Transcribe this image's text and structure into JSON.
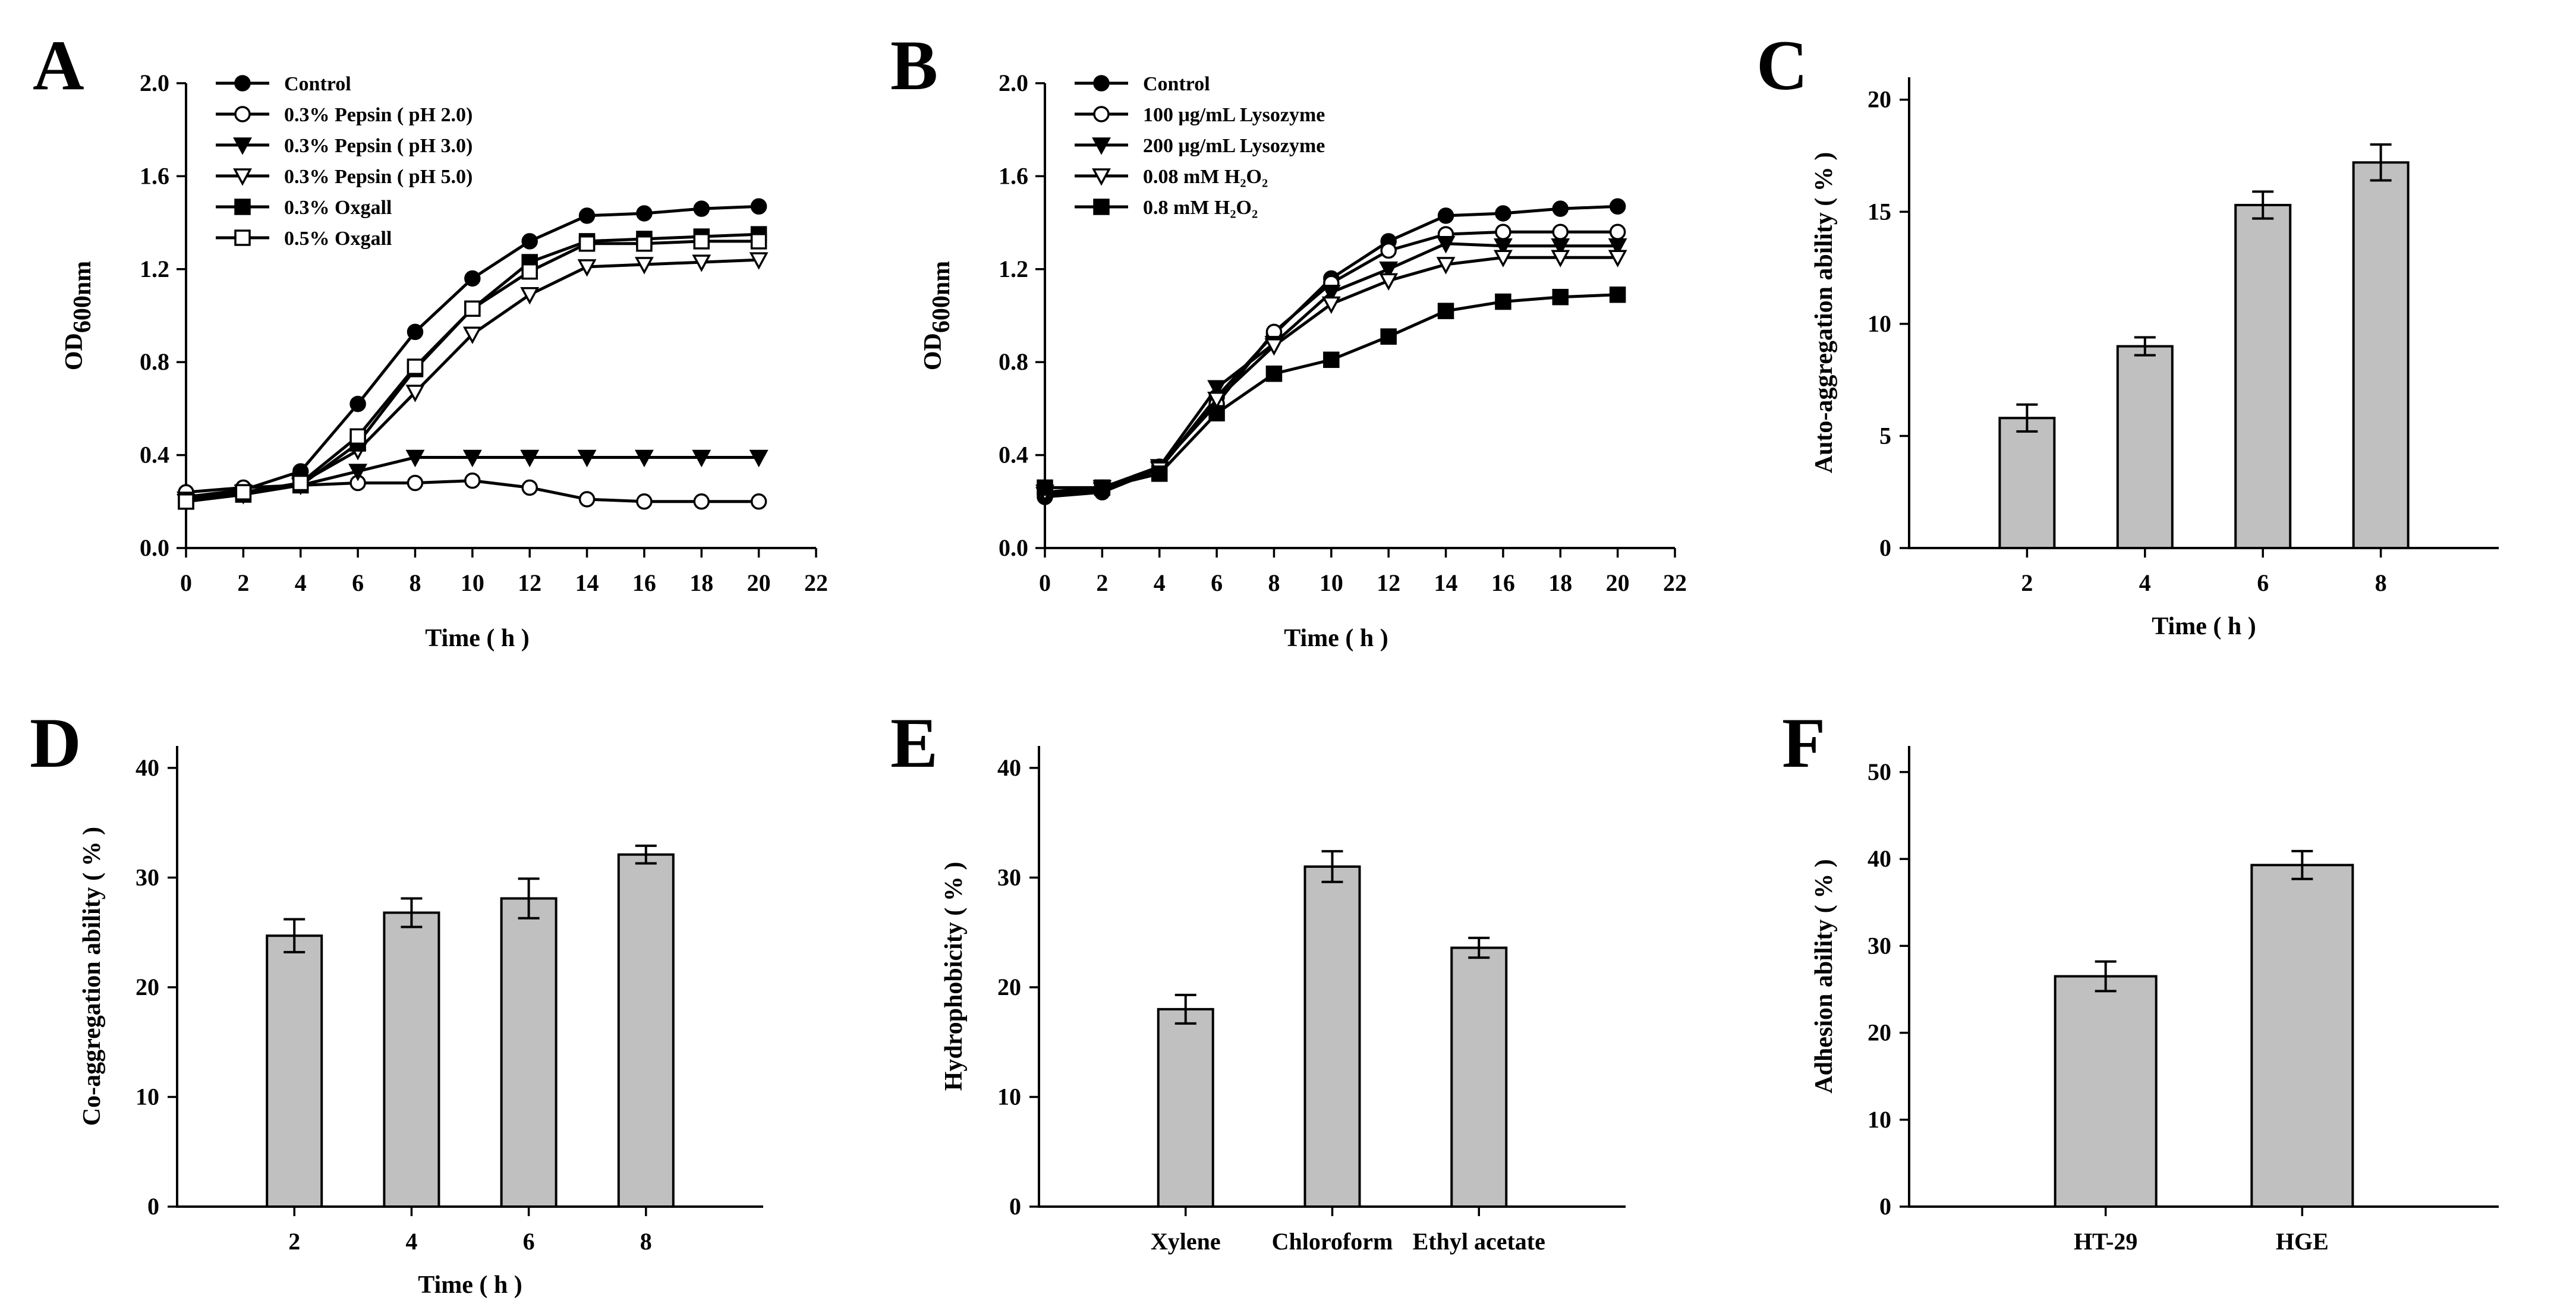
{
  "chart_data": [
    {
      "panel": "A",
      "type": "line",
      "xlabel": "Time ( h )",
      "ylabel_main": "OD",
      "ylabel_sub": "600nm",
      "xlim": [
        0,
        22
      ],
      "ylim": [
        0,
        2.0
      ],
      "xticks": [
        0,
        2,
        4,
        6,
        8,
        10,
        12,
        14,
        16,
        18,
        20,
        22
      ],
      "xtick_labels": [
        "0",
        "2",
        "4",
        "6",
        "8",
        "10",
        "12",
        "14",
        "16",
        "18",
        "20",
        "22"
      ],
      "yticks": [
        0,
        0.4,
        0.8,
        1.2,
        1.6,
        2.0
      ],
      "ytick_labels": [
        "0.0",
        "0.4",
        "0.8",
        "1.2",
        "1.6",
        "2.0"
      ],
      "x": [
        0,
        2,
        4,
        6,
        8,
        10,
        12,
        14,
        16,
        18,
        20
      ],
      "series": [
        {
          "name": "Control",
          "marker": "filled-circle",
          "values": [
            0.22,
            0.25,
            0.33,
            0.62,
            0.93,
            1.16,
            1.32,
            1.43,
            1.44,
            1.46,
            1.47
          ]
        },
        {
          "name": "0.3% Pepsin ( pH 2.0)",
          "marker": "open-circle",
          "values": [
            0.24,
            0.26,
            0.27,
            0.28,
            0.28,
            0.29,
            0.26,
            0.21,
            0.2,
            0.2,
            0.2
          ]
        },
        {
          "name": "0.3% Pepsin ( pH 3.0)",
          "marker": "filled-triangle-down",
          "values": [
            0.21,
            0.24,
            0.27,
            0.33,
            0.39,
            0.39,
            0.39,
            0.39,
            0.39,
            0.39,
            0.39
          ]
        },
        {
          "name": "0.3% Pepsin ( pH 5.0)",
          "marker": "open-triangle-down",
          "values": [
            0.2,
            0.23,
            0.28,
            0.42,
            0.67,
            0.92,
            1.09,
            1.21,
            1.22,
            1.23,
            1.24
          ]
        },
        {
          "name": "0.3% Oxgall",
          "marker": "filled-square",
          "values": [
            0.2,
            0.23,
            0.27,
            0.45,
            0.77,
            1.03,
            1.23,
            1.32,
            1.33,
            1.34,
            1.35
          ]
        },
        {
          "name": "0.5% Oxgall",
          "marker": "open-square",
          "values": [
            0.2,
            0.24,
            0.28,
            0.48,
            0.78,
            1.03,
            1.19,
            1.31,
            1.31,
            1.32,
            1.32
          ]
        }
      ]
    },
    {
      "panel": "B",
      "type": "line",
      "xlabel": "Time ( h )",
      "ylabel_main": "OD",
      "ylabel_sub": "600nm",
      "xlim": [
        0,
        22
      ],
      "ylim": [
        0,
        2.0
      ],
      "xticks": [
        0,
        2,
        4,
        6,
        8,
        10,
        12,
        14,
        16,
        18,
        20,
        22
      ],
      "xtick_labels": [
        "0",
        "2",
        "4",
        "6",
        "8",
        "10",
        "12",
        "14",
        "16",
        "18",
        "20",
        "22"
      ],
      "yticks": [
        0,
        0.4,
        0.8,
        1.2,
        1.6,
        2.0
      ],
      "ytick_labels": [
        "0.0",
        "0.4",
        "0.8",
        "1.2",
        "1.6",
        "2.0"
      ],
      "x": [
        0,
        2,
        4,
        6,
        8,
        10,
        12,
        14,
        16,
        18,
        20
      ],
      "series": [
        {
          "name": "Control",
          "marker": "filled-circle",
          "values": [
            0.22,
            0.24,
            0.34,
            0.65,
            0.92,
            1.16,
            1.32,
            1.43,
            1.44,
            1.46,
            1.47
          ]
        },
        {
          "name": "100 μg/mL  Lysozyme",
          "marker": "open-circle",
          "values": [
            0.24,
            0.26,
            0.35,
            0.62,
            0.93,
            1.14,
            1.28,
            1.35,
            1.36,
            1.36,
            1.36
          ]
        },
        {
          "name": "200 μg/mL  Lysozyme",
          "marker": "filled-triangle-down",
          "values": [
            0.23,
            0.25,
            0.35,
            0.69,
            0.88,
            1.1,
            1.2,
            1.31,
            1.3,
            1.3,
            1.3
          ]
        },
        {
          "name": "0.08 mM H₂O₂",
          "marker": "open-triangle-down",
          "values": [
            0.24,
            0.26,
            0.34,
            0.64,
            0.87,
            1.05,
            1.15,
            1.22,
            1.25,
            1.25,
            1.25
          ]
        },
        {
          "name": "0.8 mM H₂O₂",
          "marker": "filled-square",
          "values": [
            0.26,
            0.26,
            0.32,
            0.58,
            0.75,
            0.81,
            0.91,
            1.02,
            1.06,
            1.08,
            1.09
          ]
        }
      ]
    },
    {
      "panel": "C",
      "type": "bar",
      "xlabel": "Time ( h )",
      "ylabel": "Auto-aggregation ability ( % )",
      "ylim": [
        0,
        21
      ],
      "yticks": [
        0,
        5,
        10,
        15,
        20
      ],
      "ytick_labels": [
        "0",
        "5",
        "10",
        "15",
        "20"
      ],
      "categories": [
        "2",
        "4",
        "6",
        "8"
      ],
      "values": [
        5.8,
        9.0,
        15.3,
        17.2
      ],
      "errors": [
        0.6,
        0.4,
        0.6,
        0.8
      ]
    },
    {
      "panel": "D",
      "type": "bar",
      "xlabel": "Time ( h )",
      "ylabel": "Co-aggregation ability ( % )",
      "ylim": [
        0,
        42
      ],
      "yticks": [
        0,
        10,
        20,
        30,
        40
      ],
      "ytick_labels": [
        "0",
        "10",
        "20",
        "30",
        "40"
      ],
      "categories": [
        "2",
        "4",
        "6",
        "8"
      ],
      "values": [
        24.7,
        26.8,
        28.1,
        32.1
      ],
      "errors": [
        1.5,
        1.3,
        1.8,
        0.8
      ]
    },
    {
      "panel": "E",
      "type": "bar",
      "xlabel": "",
      "ylabel": "Hydrophobicity ( % )",
      "ylim": [
        0,
        42
      ],
      "yticks": [
        0,
        10,
        20,
        30,
        40
      ],
      "ytick_labels": [
        "0",
        "10",
        "20",
        "30",
        "40"
      ],
      "categories": [
        "Xylene",
        "Chloroform",
        "Ethyl acetate"
      ],
      "values": [
        18.0,
        31.0,
        23.6
      ],
      "errors": [
        1.3,
        1.4,
        0.9
      ]
    },
    {
      "panel": "F",
      "type": "bar",
      "xlabel": "",
      "ylabel": "Adhesion ability ( % )",
      "ylim": [
        0,
        53
      ],
      "yticks": [
        0,
        10,
        20,
        30,
        40,
        50
      ],
      "ytick_labels": [
        "0",
        "10",
        "20",
        "30",
        "40",
        "50"
      ],
      "categories": [
        "HT-29",
        "HGE"
      ],
      "values": [
        26.5,
        39.3
      ],
      "errors": [
        1.7,
        1.6
      ]
    }
  ]
}
